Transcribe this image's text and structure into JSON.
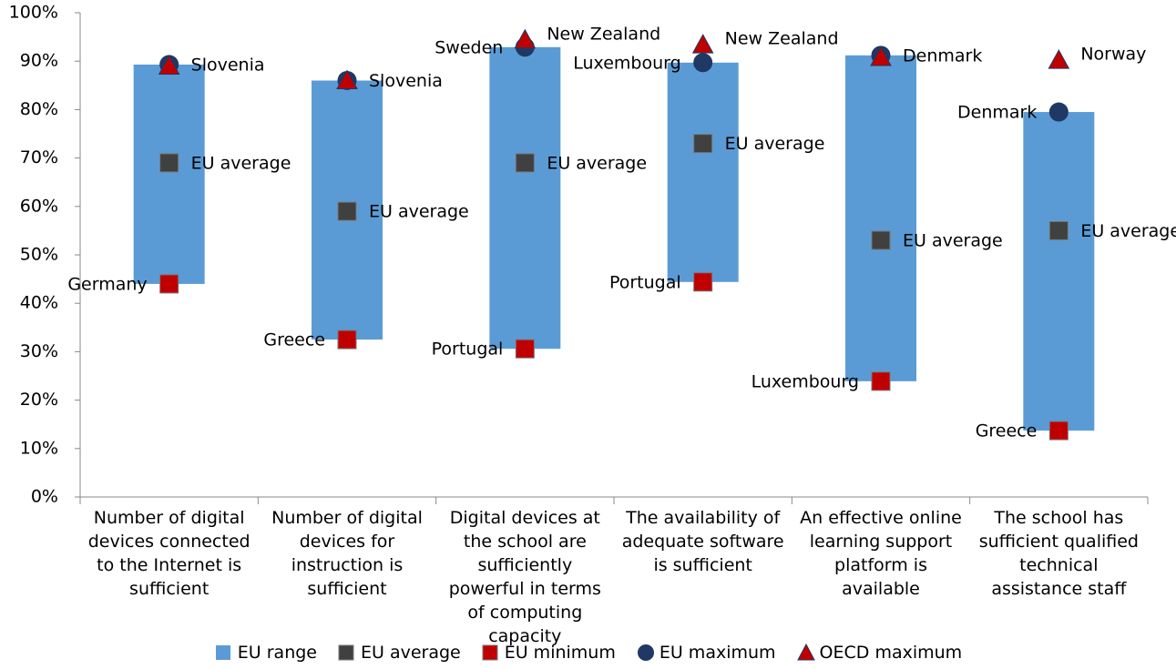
{
  "chart_data": {
    "type": "range",
    "categories": [
      "Number of digital devices connected to the Internet is sufficient",
      "Number of digital devices for instruction is sufficient",
      "Digital devices at the school are sufficiently powerful in terms of computing capacity",
      "The availability of adequate software is sufficient",
      "An effective online learning support platform is available",
      "The school has sufficient qualified technical assistance staff"
    ],
    "range": {
      "name": "EU range",
      "color": "#5b9bd5"
    },
    "series": [
      {
        "name": "EU average",
        "color": "#404040",
        "marker": "square",
        "values": [
          69,
          59,
          69,
          73,
          53,
          55
        ],
        "labels": [
          "EU average",
          "EU average",
          "EU average",
          "EU average",
          "EU average",
          "EU average"
        ]
      },
      {
        "name": "EU minimum",
        "color": "#c00000",
        "marker": "square",
        "values": [
          44,
          32.5,
          30.6,
          44.4,
          23.9,
          13.7
        ],
        "labels": [
          "Germany",
          "Greece",
          "Portugal",
          "Portugal",
          "Luxembourg",
          "Greece"
        ]
      },
      {
        "name": "EU maximum",
        "color": "#1f3864",
        "marker": "circle",
        "values": [
          89.3,
          86,
          92.9,
          89.7,
          91.2,
          79.5
        ],
        "labels": [
          "Slovenia",
          "Slovenia",
          "Sweden",
          "Luxembourg",
          "Denmark",
          "Denmark"
        ]
      },
      {
        "name": "OECD maximum",
        "color": "#c00000",
        "marker": "triangle",
        "values": [
          89,
          86,
          94.4,
          93.4,
          90.8,
          90.2
        ],
        "labels": [
          null,
          null,
          "New Zealand",
          "New Zealand",
          null,
          "Norway"
        ]
      }
    ],
    "ylim": [
      0,
      100
    ],
    "yticks": [
      {
        "value": 0,
        "label": "0%"
      },
      {
        "value": 10,
        "label": "10%"
      },
      {
        "value": 20,
        "label": "20%"
      },
      {
        "value": 30,
        "label": "30%"
      },
      {
        "value": 40,
        "label": "40%"
      },
      {
        "value": 50,
        "label": "50%"
      },
      {
        "value": 60,
        "label": "60%"
      },
      {
        "value": 70,
        "label": "70%"
      },
      {
        "value": 80,
        "label": "80%"
      },
      {
        "value": 90,
        "label": "90%"
      },
      {
        "value": 100,
        "label": "100%"
      }
    ],
    "legend": "bottom"
  }
}
